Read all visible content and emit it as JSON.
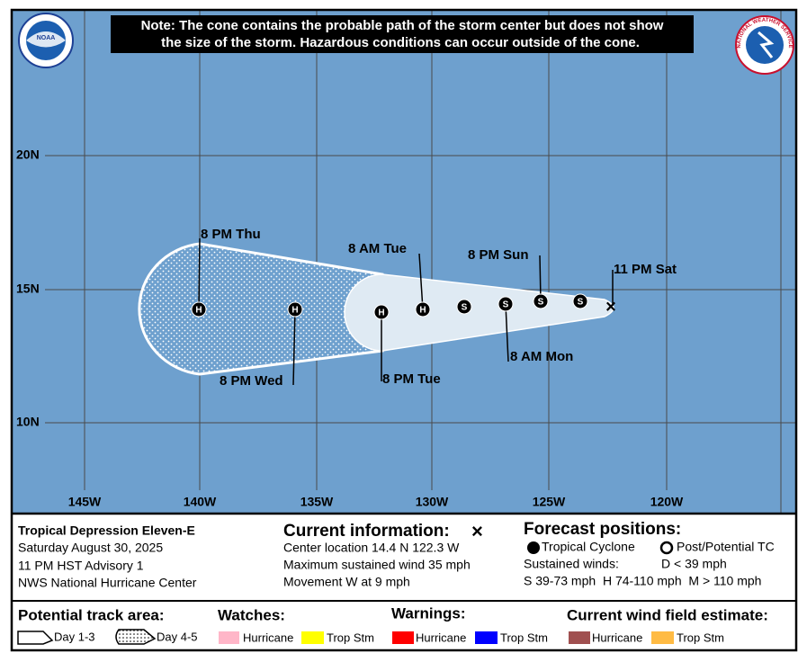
{
  "note_lines": [
    "Note: The cone contains the probable path of the storm center but does not show",
    "the size of the storm. Hazardous conditions can occur outside of the cone."
  ],
  "logos": {
    "noaa": "NOAA",
    "nws": "NATIONAL WEATHER SERVICE"
  },
  "map": {
    "lat_labels": [
      "20N",
      "15N",
      "10N"
    ],
    "lon_labels": [
      "145W",
      "140W",
      "135W",
      "130W",
      "125W",
      "120W"
    ]
  },
  "track": {
    "symbols": [
      "S",
      "S",
      "S",
      "S",
      "H",
      "H",
      "H",
      "H"
    ],
    "time_labels": [
      "11 PM Sat",
      "8 PM Sun",
      "8 AM Mon",
      "8 AM Tue",
      "8 PM Tue",
      "8 PM Wed",
      "8 PM Thu"
    ]
  },
  "storm": {
    "name": "Tropical Depression Eleven-E",
    "date": "Saturday August 30, 2025",
    "advisory": "11 PM HST Advisory 1",
    "center": "NWS National Hurricane Center"
  },
  "current": {
    "title": "Current information:",
    "symbol": "×",
    "lines": [
      "Center location 14.4 N 122.3 W",
      "Maximum sustained wind 35 mph",
      "Movement W at 9 mph"
    ]
  },
  "forecast": {
    "title": "Forecast positions:",
    "tc": "Tropical Cyclone",
    "ptc": "Post/Potential TC",
    "winds": "Sustained winds:",
    "d": "D < 39 mph",
    "scale": "S 39-73 mph  H 74-110 mph  M > 110 mph"
  },
  "legend": {
    "track_title": "Potential track area:",
    "day13": "Day 1-3",
    "day45": "Day 4-5",
    "watches": "Watches:",
    "warnings": "Warnings:",
    "wind": "Current wind field estimate:",
    "hurricane": "Hurricane",
    "tropstm": "Trop Stm"
  }
}
